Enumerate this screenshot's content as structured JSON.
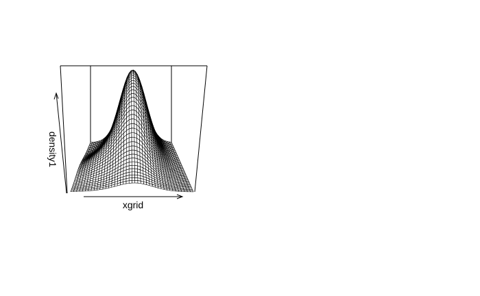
{
  "chart_data": {
    "type": "surface",
    "title": "",
    "xlabel": "xgrid",
    "ylabel": "",
    "zlabel": "density1",
    "grid": false,
    "legend": "none",
    "surface": {
      "rows": 42,
      "cols": 42,
      "peaks": [
        {
          "u": 0.52,
          "v": 0.82,
          "height": 1.0,
          "spread_u": 0.15,
          "spread_v": 0.36
        },
        {
          "u": 0.22,
          "v": 0.45,
          "height": 0.14,
          "spread_u": 0.14,
          "spread_v": 0.18
        }
      ],
      "zlim": [
        0,
        1.05
      ]
    },
    "colors": {
      "line": "#000000",
      "background": "#ffffff"
    }
  }
}
